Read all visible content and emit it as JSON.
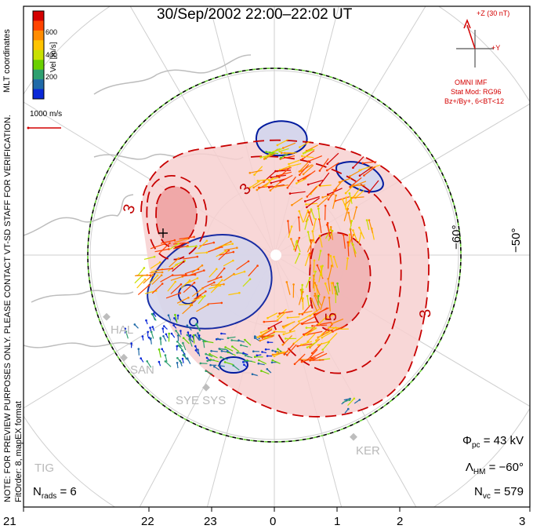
{
  "title": "30/Sep/2002 22:00–22:02 UT",
  "coord_label": "MLT coordinates",
  "note_line1": "NOTE: FOR PREVIEW PURPOSES ONLY. PLEASE CONTACT VT-SD STAFF FOR VERIFICATION.",
  "note_line2": "FitOrder: 8, mapEX format",
  "colorbar": {
    "label": "Vel [m/s]",
    "ticks": [
      "600",
      "400",
      "200"
    ],
    "colors": [
      "#d40000",
      "#ff4400",
      "#ff8c00",
      "#ffc400",
      "#c8e000",
      "#6ad000",
      "#2ea070",
      "#1f6aa8",
      "#0a28d8"
    ]
  },
  "scale_vector": "1000 m/s",
  "imf": {
    "z_label": "+Z (30 nT)",
    "y_label": "+Y",
    "source": "OMNI IMF",
    "model": "Stat Mod: RG96",
    "condition": "Bz+/By+, 6<BT<12"
  },
  "stats": {
    "phi_pc_symbol": "Φ",
    "phi_pc_sub": "pc",
    "phi_pc_value": "= 43 kV",
    "lambda_hm_symbol": "Λ",
    "lambda_hm_sub": "HM",
    "lambda_hm_value": "= −60°",
    "n_vc_symbol": "N",
    "n_vc_sub": "vc",
    "n_vc_value": "= 579",
    "n_rads_symbol": "N",
    "n_rads_sub": "rads",
    "n_rads_value": "= 6"
  },
  "mlt_ticks": [
    "21",
    "22",
    "23",
    "0",
    "1",
    "2",
    "3"
  ],
  "lat_labels": [
    "−60°",
    "−50°"
  ],
  "radars": [
    "HAL",
    "SAN",
    "SYE SYS",
    "KER",
    "TIG"
  ],
  "contour_labels": [
    "3",
    "3",
    "5",
    "3"
  ],
  "colors": {
    "positive_cell": "#c80000",
    "negative_cell": "#001a9e",
    "land_outline": "#bdbdbd",
    "hmb_boundary": "#66cc33"
  }
}
